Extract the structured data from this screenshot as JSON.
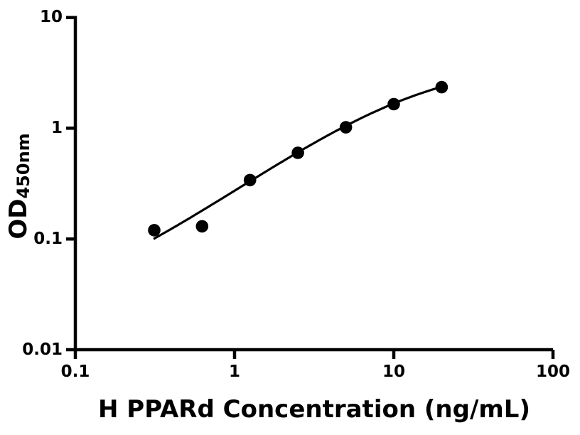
{
  "chart_data": {
    "type": "scatter",
    "title": "",
    "xlabel": "H PPARd Concentration (ng/mL)",
    "ylabel_main": "OD",
    "ylabel_sub": "450nm",
    "x_scale": "log",
    "y_scale": "log",
    "xlim": [
      0.1,
      100
    ],
    "ylim": [
      0.01,
      10
    ],
    "grid": false,
    "legend": false,
    "background_color": "#ffffff",
    "axis_color": "#000000",
    "x_ticks": [
      {
        "value": 0.1,
        "label": "0.1"
      },
      {
        "value": 1,
        "label": "1"
      },
      {
        "value": 10,
        "label": "10"
      },
      {
        "value": 100,
        "label": "100"
      }
    ],
    "y_ticks": [
      {
        "value": 0.01,
        "label": "0.01"
      },
      {
        "value": 0.1,
        "label": "0.1"
      },
      {
        "value": 1,
        "label": "1"
      },
      {
        "value": 10,
        "label": "10"
      }
    ],
    "series": [
      {
        "name": "standard-curve-points",
        "marker": "circle",
        "color": "#000000",
        "points": [
          {
            "x": 0.313,
            "y": 0.12
          },
          {
            "x": 0.625,
            "y": 0.13
          },
          {
            "x": 1.25,
            "y": 0.34
          },
          {
            "x": 2.5,
            "y": 0.6
          },
          {
            "x": 5,
            "y": 1.02
          },
          {
            "x": 10,
            "y": 1.65
          },
          {
            "x": 20,
            "y": 2.35
          }
        ]
      }
    ],
    "fit_curve": {
      "model": "4PL",
      "bottom": 0.02,
      "top": 4.0,
      "ec50": 14,
      "hill": 1.02,
      "x_start": 0.31,
      "x_end": 20,
      "color": "#000000"
    }
  }
}
